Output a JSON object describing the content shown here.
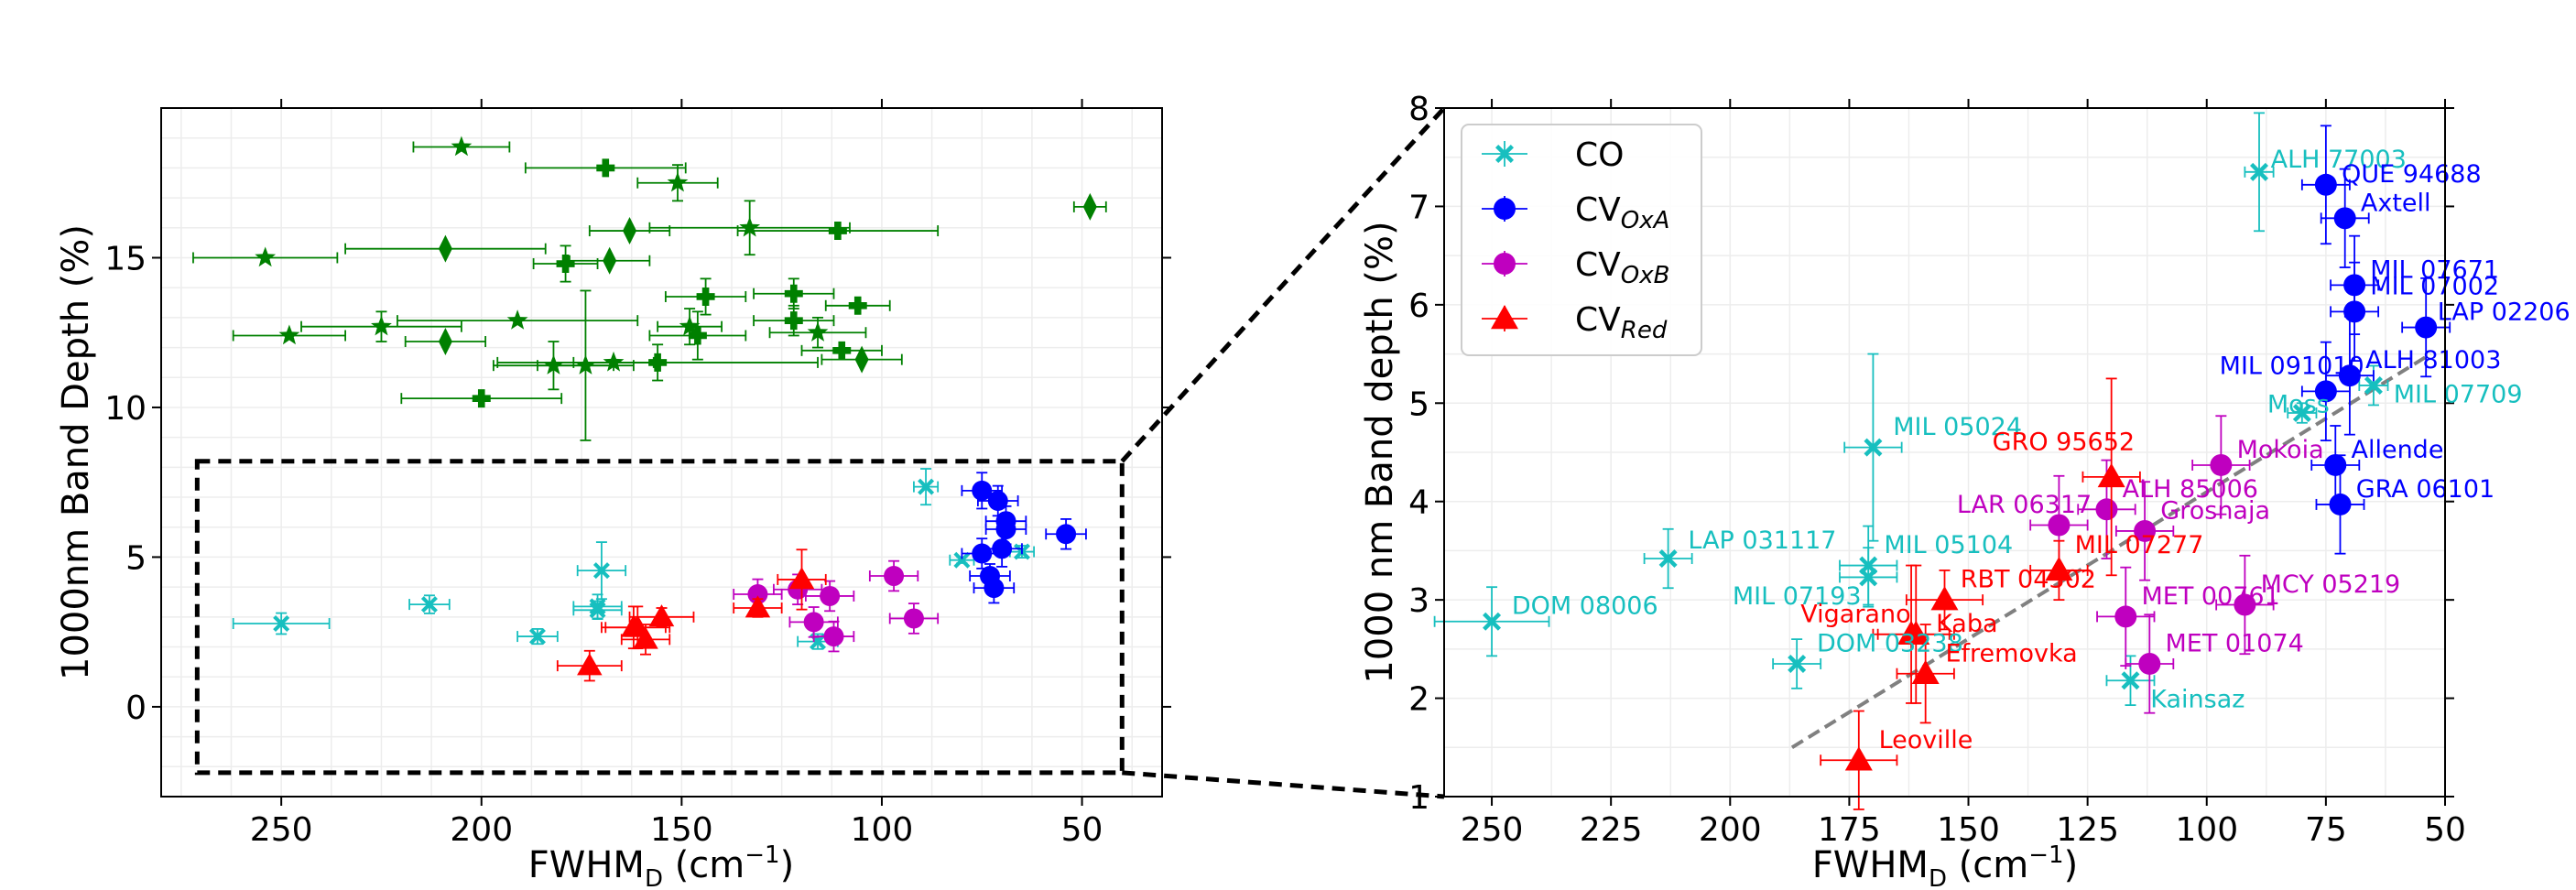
{
  "colors": {
    "CO": "#17bfbf",
    "CV_OxA": "#0000ff",
    "CV_OxB": "#bf00bf",
    "CV_Red": "#ff0000",
    "other": "#008000",
    "trend": "#808080"
  },
  "chart_data": [
    {
      "type": "scatter",
      "panel": "left",
      "xlabel": "FWHM",
      "xlabel_sub": "D",
      "xlabel_unit": " (cm",
      "xlabel_sup": "−1",
      "xlabel_close": ")",
      "ylabel": "1000nm Band Depth (%)",
      "xlim": [
        280,
        30
      ],
      "ylim": [
        -3,
        20
      ],
      "xticks": [
        250,
        200,
        150,
        100,
        50
      ],
      "yticks": [
        0,
        5,
        10,
        15
      ],
      "inset_box": {
        "x": [
          271,
          40
        ],
        "y": [
          -2.2,
          8.2
        ]
      },
      "green_series": [
        {
          "name": "stars",
          "marker": "star",
          "points": [
            {
              "x": 205,
              "y": 18.7,
              "xerr": 12,
              "yerr": 0
            },
            {
              "x": 151,
              "y": 17.5,
              "xerr": 10,
              "yerr": 0.6
            },
            {
              "x": 254,
              "y": 15.0,
              "xerr": 18,
              "yerr": 0
            },
            {
              "x": 133,
              "y": 16.0,
              "xerr": 25,
              "yerr": 0.9
            },
            {
              "x": 248,
              "y": 12.4,
              "xerr": 14,
              "yerr": 0
            },
            {
              "x": 225,
              "y": 12.7,
              "xerr": 20,
              "yerr": 0.5
            },
            {
              "x": 191,
              "y": 12.9,
              "xerr": 30,
              "yerr": 0
            },
            {
              "x": 182,
              "y": 11.4,
              "xerr": 15,
              "yerr": 0.8
            },
            {
              "x": 174,
              "y": 11.4,
              "xerr": 12,
              "yerr": 2.5
            },
            {
              "x": 167,
              "y": 11.5,
              "xerr": 10,
              "yerr": 0
            },
            {
              "x": 148,
              "y": 12.7,
              "xerr": 8,
              "yerr": 0.6
            },
            {
              "x": 116,
              "y": 12.5,
              "xerr": 12,
              "yerr": 0.5
            }
          ]
        },
        {
          "name": "crosses",
          "marker": "plus",
          "points": [
            {
              "x": 169,
              "y": 18.0,
              "xerr": 20,
              "yerr": 0
            },
            {
              "x": 111,
              "y": 15.9,
              "xerr": 25,
              "yerr": 0
            },
            {
              "x": 179,
              "y": 14.8,
              "xerr": 8,
              "yerr": 0.6
            },
            {
              "x": 144,
              "y": 13.7,
              "xerr": 10,
              "yerr": 0.6
            },
            {
              "x": 122,
              "y": 13.8,
              "xerr": 10,
              "yerr": 0.5
            },
            {
              "x": 106,
              "y": 13.4,
              "xerr": 8,
              "yerr": 0
            },
            {
              "x": 122,
              "y": 12.9,
              "xerr": 10,
              "yerr": 0.5
            },
            {
              "x": 146,
              "y": 12.4,
              "xerr": 12,
              "yerr": 0.8
            },
            {
              "x": 156,
              "y": 11.5,
              "xerr": 40,
              "yerr": 0.6
            },
            {
              "x": 110,
              "y": 11.9,
              "xerr": 10,
              "yerr": 0
            },
            {
              "x": 200,
              "y": 10.3,
              "xerr": 20,
              "yerr": 0
            }
          ]
        },
        {
          "name": "diamonds",
          "marker": "diamond",
          "points": [
            {
              "x": 48,
              "y": 16.7,
              "xerr": 4,
              "yerr": 0
            },
            {
              "x": 209,
              "y": 15.3,
              "xerr": 25,
              "yerr": 0
            },
            {
              "x": 163,
              "y": 15.9,
              "xerr": 10,
              "yerr": 0
            },
            {
              "x": 168,
              "y": 14.9,
              "xerr": 10,
              "yerr": 0
            },
            {
              "x": 209,
              "y": 12.2,
              "xerr": 10,
              "yerr": 0
            },
            {
              "x": 105,
              "y": 11.6,
              "xerr": 10,
              "yerr": 0
            }
          ]
        }
      ]
    },
    {
      "type": "scatter",
      "panel": "right",
      "xlabel": "FWHM",
      "xlabel_sub": "D",
      "xlabel_unit": " (cm",
      "xlabel_sup": "−1",
      "xlabel_close": ")",
      "ylabel": "1000 nm Band depth (%)",
      "xlim": [
        260,
        50
      ],
      "ylim": [
        1,
        8
      ],
      "xticks": [
        250,
        225,
        200,
        175,
        150,
        125,
        100,
        75,
        50
      ],
      "yticks": [
        1,
        2,
        3,
        4,
        5,
        6,
        7,
        8
      ],
      "trendline": {
        "x": [
          187,
          53
        ],
        "y": [
          1.5,
          5.5
        ]
      },
      "legend": [
        {
          "key": "CO",
          "label": "CO",
          "sub": "",
          "marker": "x",
          "color": "#17bfbf"
        },
        {
          "key": "CV_OxA",
          "label": "CV",
          "sub": "OxA",
          "marker": "circle",
          "color": "#0000ff"
        },
        {
          "key": "CV_OxB",
          "label": "CV",
          "sub": "OxB",
          "marker": "circle",
          "color": "#bf00bf"
        },
        {
          "key": "CV_Red",
          "label": "CV",
          "sub": "Red",
          "marker": "triangle",
          "color": "#ff0000"
        }
      ],
      "series": [
        {
          "name": "CO",
          "marker": "x",
          "color": "#17bfbf",
          "points": [
            {
              "label": "ALH 77003",
              "x": 89,
              "y": 7.35,
              "xerr": 3,
              "yerr": 0.6,
              "lx": 1,
              "ly": -0.12
            },
            {
              "label": "MIL 07709",
              "x": 65,
              "y": 5.18,
              "xerr": 3,
              "yerr": 0.2,
              "lx": 3,
              "ly": 0.1
            },
            {
              "label": "Moss",
              "x": 80,
              "y": 4.9,
              "xerr": 3,
              "yerr": 0.1,
              "lx": -10,
              "ly": -0.08
            },
            {
              "label": "MIL 05024",
              "x": 170,
              "y": 4.55,
              "xerr": 6,
              "yerr": 0.95,
              "lx": 3,
              "ly": -0.2
            },
            {
              "label": "LAP 031117",
              "x": 213,
              "y": 3.42,
              "xerr": 5,
              "yerr": 0.3,
              "lx": 3,
              "ly": -0.18
            },
            {
              "label": "MIL 05104",
              "x": 171,
              "y": 3.35,
              "xerr": 6,
              "yerr": 0.4,
              "lx": 2,
              "ly": -0.2
            },
            {
              "label": "MIL 07193",
              "x": 171,
              "y": 3.23,
              "xerr": 6,
              "yerr": 0.3,
              "lx": -34,
              "ly": 0.2
            },
            {
              "label": "DOM 08006",
              "x": 250,
              "y": 2.78,
              "xerr": 12,
              "yerr": 0.35,
              "lx": 3,
              "ly": -0.15
            },
            {
              "label": "DOM 03238",
              "x": 186,
              "y": 2.35,
              "xerr": 5,
              "yerr": 0.25,
              "lx": 3,
              "ly": -0.2
            },
            {
              "label": "Kainsaz",
              "x": 116,
              "y": 2.18,
              "xerr": 5,
              "yerr": 0.25,
              "lx": 3,
              "ly": 0.2
            }
          ]
        },
        {
          "name": "CV_OxA",
          "marker": "circle",
          "color": "#0000ff",
          "points": [
            {
              "label": "QUE 94688",
              "x": 75,
              "y": 7.22,
              "xerr": 5,
              "yerr": 0.6,
              "lx": 2,
              "ly": -0.1
            },
            {
              "label": "Axtell",
              "x": 71,
              "y": 6.88,
              "xerr": 5,
              "yerr": 0.5,
              "lx": 2,
              "ly": -0.15
            },
            {
              "label": "MIL 07671",
              "x": 69,
              "y": 6.2,
              "xerr": 5,
              "yerr": 0.5,
              "lx": 2,
              "ly": -0.15
            },
            {
              "label": "MIL 07002",
              "x": 69,
              "y": 5.93,
              "xerr": 5,
              "yerr": 0.5,
              "lx": 2,
              "ly": -0.25
            },
            {
              "label": "LAP 02206",
              "x": 54,
              "y": 5.77,
              "xerr": 5,
              "yerr": 0.5,
              "lx": 1,
              "ly": -0.15
            },
            {
              "label": "ALH 81003",
              "x": 70,
              "y": 5.28,
              "xerr": 5,
              "yerr": 0.6,
              "lx": 2,
              "ly": -0.15
            },
            {
              "label": "MIL 091010",
              "x": 75,
              "y": 5.12,
              "xerr": 5,
              "yerr": 0.5,
              "lx": -27,
              "ly": -0.25
            },
            {
              "label": "Allende",
              "x": 73,
              "y": 4.37,
              "xerr": 5,
              "yerr": 0.4,
              "lx": 2,
              "ly": -0.15
            },
            {
              "label": "GRA 06101",
              "x": 72,
              "y": 3.97,
              "xerr": 5,
              "yerr": 0.5,
              "lx": 2,
              "ly": -0.15
            }
          ]
        },
        {
          "name": "CV_OxB",
          "marker": "circle",
          "color": "#bf00bf",
          "points": [
            {
              "label": "Mokoia",
              "x": 97,
              "y": 4.37,
              "xerr": 6,
              "yerr": 0.5,
              "lx": 2,
              "ly": -0.15
            },
            {
              "label": "ALH 85006",
              "x": 121,
              "y": 3.92,
              "xerr": 6,
              "yerr": 0.5,
              "lx": 2,
              "ly": -0.2
            },
            {
              "label": "LAR 06317",
              "x": 131,
              "y": 3.76,
              "xerr": 6,
              "yerr": 0.5,
              "lx": -26,
              "ly": -0.2
            },
            {
              "label": "Grosnaja",
              "x": 113,
              "y": 3.7,
              "xerr": 6,
              "yerr": 0.5,
              "lx": 2,
              "ly": -0.2
            },
            {
              "label": "MCY 05219",
              "x": 92,
              "y": 2.95,
              "xerr": 6,
              "yerr": 0.5,
              "lx": 2,
              "ly": -0.2
            },
            {
              "label": "MET 00761",
              "x": 117,
              "y": 2.83,
              "xerr": 6,
              "yerr": 0.5,
              "lx": 2,
              "ly": -0.2
            },
            {
              "label": "MET 01074",
              "x": 112,
              "y": 2.35,
              "xerr": 5,
              "yerr": 0.5,
              "lx": 2,
              "ly": -0.2
            }
          ]
        },
        {
          "name": "CV_Red",
          "marker": "triangle",
          "color": "#ff0000",
          "points": [
            {
              "label": "GRO 95652",
              "x": 120,
              "y": 4.25,
              "xerr": 6,
              "yerr": 1.0,
              "lx": -30,
              "ly": -0.35
            },
            {
              "label": "MIL 07277",
              "x": 131,
              "y": 3.3,
              "xerr": 6,
              "yerr": 0.3,
              "lx": 2,
              "ly": -0.25
            },
            {
              "label": "RBT 04302",
              "x": 155,
              "y": 3.0,
              "xerr": 8,
              "yerr": 0.3,
              "lx": 2,
              "ly": -0.2
            },
            {
              "label": "Vigarano",
              "x": 162,
              "y": 2.65,
              "xerr": 8,
              "yerr": 0.7,
              "lx": -28,
              "ly": -0.2
            },
            {
              "label": "Kaba",
              "x": 161,
              "y": 2.65,
              "xerr": 8,
              "yerr": 0.7,
              "lx": 3,
              "ly": -0.1
            },
            {
              "label": "Efremovka",
              "x": 159,
              "y": 2.25,
              "xerr": 6,
              "yerr": 0.5,
              "lx": 3,
              "ly": -0.2
            },
            {
              "label": "Leoville",
              "x": 173,
              "y": 1.37,
              "xerr": 8,
              "yerr": 0.5,
              "lx": 3,
              "ly": -0.2
            }
          ]
        }
      ]
    }
  ]
}
